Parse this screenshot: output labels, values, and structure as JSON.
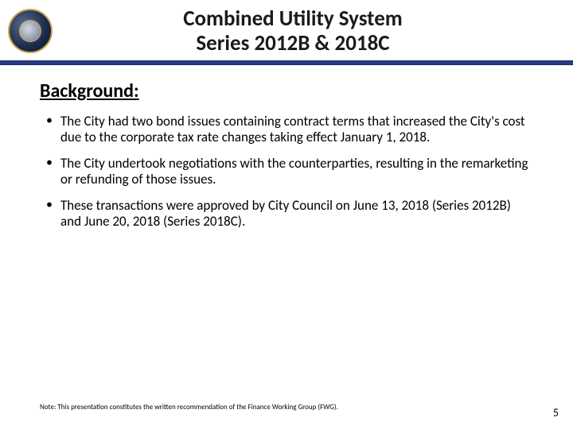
{
  "title": {
    "line1": "Combined Utility System",
    "line2": "Series 2012B & 2018C"
  },
  "divider_color": "#1b2e6b",
  "section_heading": "Background:",
  "bullets": [
    "The City had two bond issues containing contract terms that increased the City's cost due to the corporate tax rate changes taking effect January 1, 2018.",
    "The City undertook negotiations with the counterparties, resulting in the remarketing or refunding of those issues.",
    "These transactions were approved by City Council on June 13, 2018 (Series 2012B) and June 20, 2018 (Series 2018C)."
  ],
  "footnote": "Note:  This presentation constitutes the written recommendation of the Finance Working Group (FWG).",
  "page_number": "5"
}
